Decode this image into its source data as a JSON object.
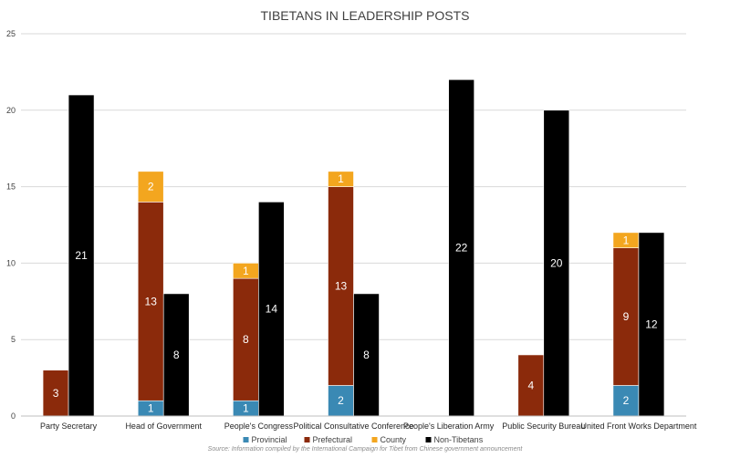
{
  "chart_data": {
    "type": "bar",
    "title": "TIBETANS IN LEADERSHIP POSTS",
    "xlabel": "",
    "ylabel": "",
    "ylim": [
      0,
      25
    ],
    "yticks": [
      "0",
      "5",
      "10",
      "15",
      "20",
      "25"
    ],
    "grid": true,
    "legend_position": "bottom",
    "categories": [
      "Party Secretary",
      "Head of Government",
      "People's Congress",
      "Political Consultative Conference",
      "People's Liberation Army",
      "Public Security Bureau",
      "United Front Works Department"
    ],
    "series": [
      {
        "name": "Provincial",
        "color": "#3a89b4",
        "stack": "tibetan",
        "values": [
          0,
          1,
          1,
          2,
          0,
          0,
          2
        ]
      },
      {
        "name": "Prefectural",
        "color": "#8b2a0b",
        "stack": "tibetan",
        "values": [
          3,
          13,
          8,
          13,
          0,
          4,
          9
        ]
      },
      {
        "name": "County",
        "color": "#f3a61f",
        "stack": "tibetan",
        "values": [
          0,
          2,
          1,
          1,
          0,
          0,
          1
        ]
      },
      {
        "name": "Non-Tibetans",
        "color": "#000000",
        "stack": "non",
        "values": [
          21,
          8,
          14,
          8,
          22,
          20,
          12
        ]
      }
    ],
    "source": "Source: Information compiled by the International Campaign for Tibet from Chinese government announcement"
  }
}
